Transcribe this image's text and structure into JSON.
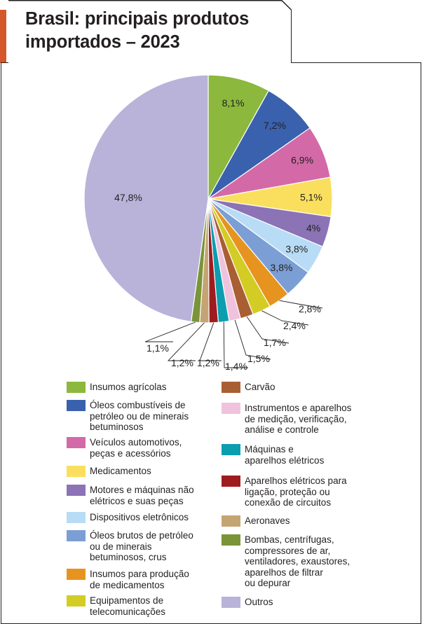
{
  "title": "Brasil: principais produtos\nimportados – 2023",
  "chart_data": {
    "type": "pie",
    "title": "Brasil: principais produtos importados – 2023",
    "slices": [
      {
        "name": "Insumos agrícolas",
        "value": 8.1,
        "label": "8,1%",
        "color": "#8bb83d"
      },
      {
        "name": "Óleos combustíveis de\npetróleo ou de minerais\nbetuminosos",
        "value": 7.2,
        "label": "7,2%",
        "color": "#3a61ad"
      },
      {
        "name": "Veículos automotivos,\npeças e acessórios",
        "value": 6.9,
        "label": "6,9%",
        "color": "#d36aa7"
      },
      {
        "name": "Medicamentos",
        "value": 5.1,
        "label": "5,1%",
        "color": "#fadf5e"
      },
      {
        "name": "Motores e máquinas não\nelétricos e suas peças",
        "value": 4.0,
        "label": "4%",
        "color": "#8b73b5"
      },
      {
        "name": "Dispositivos eletrônicos",
        "value": 3.8,
        "label": "3,8%",
        "color": "#b8dcf6"
      },
      {
        "name": "Óleos brutos de petróleo\nou de minerais\nbetuminosos, crus",
        "value": 3.8,
        "label": "3,8%",
        "color": "#7b9fd4"
      },
      {
        "name": "Insumos para produção\nde medicamentos",
        "value": 2.8,
        "label": "2,8%",
        "color": "#e6941f"
      },
      {
        "name": "Equipamentos de\ntelecomunicações",
        "value": 2.4,
        "label": "2,4%",
        "color": "#d2cc24"
      },
      {
        "name": "Carvão",
        "value": 1.7,
        "label": "1,7%",
        "color": "#a95f33"
      },
      {
        "name": "Instrumentos e aparelhos\nde medição, verificação,\nanálise e controle",
        "value": 1.5,
        "label": "1,5%",
        "color": "#efc3dd"
      },
      {
        "name": "Máquinas e\naparelhos elétricos",
        "value": 1.4,
        "label": "1,4%",
        "color": "#0b9eaf"
      },
      {
        "name": "Aparelhos elétricos para\nligação, proteção ou\nconexão de circuitos",
        "value": 1.2,
        "label": "1,2%",
        "color": "#9e1c20"
      },
      {
        "name": "Aeronaves",
        "value": 1.2,
        "label": "1,2%",
        "color": "#c5a473"
      },
      {
        "name": "Bombas, centrífugas,\ncompressores de ar,\nventiladores, exaustores,\naparelhos de filtrar\nou depurar",
        "value": 1.1,
        "label": "1,1%",
        "color": "#7a9437"
      },
      {
        "name": "Outros",
        "value": 47.8,
        "label": "47,8%",
        "color": "#b9b2d9"
      }
    ],
    "legend_placement": "bottom"
  }
}
